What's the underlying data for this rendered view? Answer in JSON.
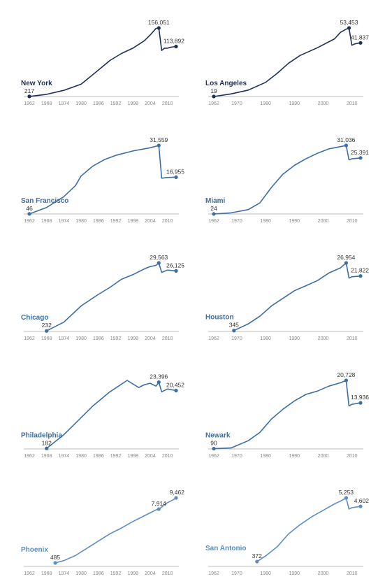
{
  "chart_data": [
    {
      "type": "line",
      "city": "New York",
      "color": "#1f2f5a",
      "x": [
        1962,
        1968,
        1974,
        1980,
        1986,
        1990,
        1994,
        1998,
        2002,
        2004,
        2006,
        2007,
        2008,
        2009,
        2010,
        2011,
        2012,
        2013
      ],
      "values": [
        217,
        5000,
        14000,
        28000,
        60000,
        82000,
        98000,
        110000,
        127000,
        140000,
        155000,
        156051,
        105000,
        110000,
        110000,
        112000,
        113000,
        113892
      ],
      "labels": [
        {
          "i": 0,
          "text": "217"
        },
        {
          "i": 11,
          "text": "156,051"
        },
        {
          "i": 17,
          "text": "113,892"
        }
      ],
      "xticks": [
        "1962",
        "1968",
        "1974",
        "1980",
        "1986",
        "1992",
        "1998",
        "2004",
        "2010"
      ],
      "xtick_values": [
        1962,
        1968,
        1974,
        1980,
        1986,
        1992,
        1998,
        2004,
        2010
      ]
    },
    {
      "type": "line",
      "city": "Los Angeles",
      "color": "#1f2f5a",
      "x": [
        1962,
        1968,
        1974,
        1980,
        1984,
        1988,
        1992,
        1998,
        2004,
        2006,
        2008,
        2009,
        2010,
        2011,
        2012,
        2013
      ],
      "values": [
        19,
        2000,
        5000,
        11000,
        18000,
        26000,
        32000,
        38000,
        45000,
        50000,
        52500,
        53453,
        40000,
        41000,
        41500,
        41837
      ],
      "labels": [
        {
          "i": 0,
          "text": "19"
        },
        {
          "i": 11,
          "text": "53,453"
        },
        {
          "i": 15,
          "text": "41,837"
        }
      ],
      "xticks": [
        "1962",
        "1970",
        "1980",
        "1990",
        "2000",
        "2010"
      ],
      "xtick_values": [
        1962,
        1970,
        1980,
        1990,
        2000,
        2010
      ]
    },
    {
      "type": "line",
      "city": "San Francisco",
      "color": "#3b6ea5",
      "x": [
        1962,
        1968,
        1974,
        1978,
        1980,
        1984,
        1988,
        1992,
        1998,
        2004,
        2007,
        2008,
        2010,
        2013
      ],
      "values": [
        46,
        3000,
        8000,
        13000,
        17500,
        22000,
        25000,
        27000,
        29000,
        30500,
        31559,
        16500,
        16800,
        16955
      ],
      "labels": [
        {
          "i": 0,
          "text": "46"
        },
        {
          "i": 10,
          "text": "31,559"
        },
        {
          "i": 13,
          "text": "16,955"
        }
      ],
      "xticks": [
        "1962",
        "1968",
        "1974",
        "1980",
        "1986",
        "1992",
        "1998",
        "2004",
        "2010"
      ],
      "xtick_values": [
        1962,
        1968,
        1974,
        1980,
        1986,
        1992,
        1998,
        2004,
        2010
      ]
    },
    {
      "type": "line",
      "city": "Miami",
      "color": "#3b6ea5",
      "x": [
        1962,
        1968,
        1974,
        1978,
        1982,
        1986,
        1990,
        1994,
        1998,
        2002,
        2004,
        2006,
        2008,
        2009,
        2010,
        2013
      ],
      "values": [
        24,
        500,
        2000,
        5000,
        12000,
        18000,
        22000,
        25000,
        27500,
        29500,
        30000,
        30500,
        31036,
        24500,
        25000,
        25391
      ],
      "labels": [
        {
          "i": 0,
          "text": "24"
        },
        {
          "i": 12,
          "text": "31,036"
        },
        {
          "i": 15,
          "text": "25,391"
        }
      ],
      "xticks": [
        "1962",
        "1970",
        "1980",
        "1990",
        "2000",
        "2010"
      ],
      "xtick_values": [
        1962,
        1970,
        1980,
        1990,
        2000,
        2010
      ]
    },
    {
      "type": "line",
      "city": "Chicago",
      "color": "#3b6ea5",
      "x": [
        1968,
        1974,
        1980,
        1986,
        1990,
        1994,
        1998,
        2002,
        2004,
        2006,
        2007,
        2008,
        2010,
        2013
      ],
      "values": [
        232,
        4000,
        11000,
        16000,
        19000,
        22500,
        24500,
        27000,
        28000,
        28500,
        29563,
        25500,
        26500,
        26125
      ],
      "labels": [
        {
          "i": 0,
          "text": "232"
        },
        {
          "i": 10,
          "text": "29,563"
        },
        {
          "i": 13,
          "text": "26,125"
        }
      ],
      "xticks": [
        "1962",
        "1968",
        "1974",
        "1980",
        "1986",
        "1992",
        "1998",
        "2004",
        "2010"
      ],
      "xtick_values": [
        1962,
        1968,
        1974,
        1980,
        1986,
        1992,
        1998,
        2004,
        2010
      ]
    },
    {
      "type": "line",
      "city": "Houston",
      "color": "#3b6ea5",
      "x": [
        1969,
        1974,
        1978,
        1982,
        1986,
        1990,
        1994,
        1998,
        2002,
        2006,
        2008,
        2009,
        2010,
        2013
      ],
      "values": [
        345,
        3000,
        6000,
        10000,
        13000,
        16000,
        18000,
        20000,
        23000,
        25000,
        26954,
        21000,
        21500,
        21822
      ],
      "labels": [
        {
          "i": 0,
          "text": "345"
        },
        {
          "i": 10,
          "text": "26,954"
        },
        {
          "i": 13,
          "text": "21,822"
        }
      ],
      "xticks": [
        "1962",
        "1970",
        "1980",
        "1990",
        "2000",
        "2010"
      ],
      "xtick_values": [
        1962,
        1970,
        1980,
        1990,
        2000,
        2010
      ]
    },
    {
      "type": "line",
      "city": "Philadelphia",
      "color": "#3b6ea5",
      "x": [
        1968,
        1974,
        1978,
        1984,
        1990,
        1996,
        2000,
        2002,
        2004,
        2006,
        2007,
        2008,
        2010,
        2013
      ],
      "values": [
        182,
        5000,
        9000,
        15000,
        20000,
        24000,
        21500,
        22500,
        23000,
        22000,
        23396,
        20000,
        21000,
        20452
      ],
      "labels": [
        {
          "i": 0,
          "text": "182"
        },
        {
          "i": 10,
          "text": "23,396"
        },
        {
          "i": 13,
          "text": "20,452"
        }
      ],
      "xticks": [
        "1962",
        "1968",
        "1974",
        "1980",
        "1986",
        "1992",
        "1998",
        "2004",
        "2010"
      ],
      "xtick_values": [
        1962,
        1968,
        1974,
        1980,
        1986,
        1992,
        1998,
        2004,
        2010
      ]
    },
    {
      "type": "line",
      "city": "Newark",
      "color": "#3b6ea5",
      "x": [
        1962,
        1968,
        1974,
        1978,
        1982,
        1986,
        1990,
        1994,
        1998,
        2002,
        2006,
        2008,
        2009,
        2010,
        2013
      ],
      "values": [
        90,
        300,
        2500,
        5000,
        9000,
        12000,
        14500,
        16500,
        17500,
        19000,
        20000,
        20728,
        13000,
        13500,
        13936
      ],
      "labels": [
        {
          "i": 0,
          "text": "90"
        },
        {
          "i": 11,
          "text": "20,728"
        },
        {
          "i": 14,
          "text": "13,936"
        }
      ],
      "xticks": [
        "1962",
        "1970",
        "1980",
        "1990",
        "2000",
        "2010"
      ],
      "xtick_values": [
        1962,
        1970,
        1980,
        1990,
        2000,
        2010
      ]
    },
    {
      "type": "line",
      "city": "Phoenix",
      "color": "#5b8ec4",
      "x": [
        1971,
        1974,
        1978,
        1982,
        1986,
        1990,
        1994,
        1998,
        2002,
        2006,
        2007,
        2008,
        2010,
        2011,
        2012,
        2013
      ],
      "values": [
        485,
        800,
        1500,
        2500,
        3500,
        4500,
        5300,
        6200,
        7000,
        7800,
        7914,
        8200,
        8800,
        9000,
        9200,
        9462
      ],
      "labels": [
        {
          "i": 0,
          "text": "485"
        },
        {
          "i": 10,
          "text": "7,914"
        },
        {
          "i": 15,
          "text": "9,462"
        }
      ],
      "xticks": [
        "1962",
        "1968",
        "1974",
        "1980",
        "1986",
        "1992",
        "1998",
        "2004",
        "2010"
      ],
      "xtick_values": [
        1962,
        1968,
        1974,
        1980,
        1986,
        1992,
        1998,
        2004,
        2010
      ]
    },
    {
      "type": "line",
      "city": "San Antonio",
      "color": "#5b8ec4",
      "x": [
        1977,
        1980,
        1984,
        1988,
        1992,
        1996,
        2000,
        2004,
        2006,
        2008,
        2009,
        2010,
        2013
      ],
      "values": [
        372,
        800,
        1500,
        2500,
        3200,
        3800,
        4300,
        4800,
        5000,
        5253,
        4400,
        4500,
        4602
      ],
      "labels": [
        {
          "i": 0,
          "text": "372"
        },
        {
          "i": 9,
          "text": "5,253"
        },
        {
          "i": 12,
          "text": "4,602"
        }
      ],
      "xticks": [
        "1962",
        "1970",
        "1980",
        "1990",
        "2000",
        "2010"
      ],
      "xtick_values": [
        1962,
        1970,
        1980,
        1990,
        2000,
        2010
      ]
    }
  ]
}
